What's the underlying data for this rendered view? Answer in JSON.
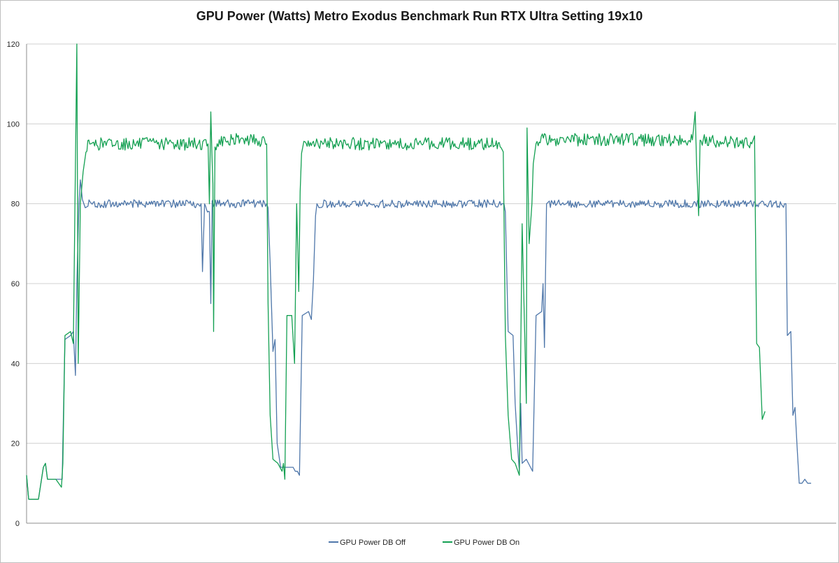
{
  "chart_data": {
    "type": "line",
    "title": "GPU Power (Watts) Metro Exodus Benchmark Run RTX Ultra Setting 19x10",
    "xlabel": "",
    "ylabel": "",
    "ylim": [
      0,
      120
    ],
    "yticks": [
      "0",
      "20",
      "40",
      "60",
      "80",
      "100",
      "120"
    ],
    "grid": true,
    "legend_position": "bottom-center",
    "series": [
      {
        "name": "GPU Power DB Off",
        "color": "#4f77aa",
        "points": [
          [
            0,
            12
          ],
          [
            3,
            6
          ],
          [
            7,
            6
          ],
          [
            10,
            6
          ],
          [
            17,
            6
          ],
          [
            24,
            14
          ],
          [
            27,
            15
          ],
          [
            30,
            11
          ],
          [
            42,
            11
          ],
          [
            51,
            11
          ],
          [
            55,
            46
          ],
          [
            63,
            47
          ],
          [
            67,
            48
          ],
          [
            70,
            37
          ],
          [
            72,
            60
          ],
          [
            75,
            80
          ],
          [
            77,
            86
          ],
          [
            80,
            81
          ],
          [
            84,
            79
          ],
          [
            88,
            80
          ],
          [
            200,
            80
          ],
          [
            245,
            80
          ],
          [
            250,
            80
          ],
          [
            252,
            63
          ],
          [
            255,
            80
          ],
          [
            262,
            78
          ],
          [
            264,
            55
          ],
          [
            266,
            80
          ],
          [
            330,
            80
          ],
          [
            344,
            80
          ],
          [
            346,
            79
          ],
          [
            349,
            65
          ],
          [
            353,
            43
          ],
          [
            356,
            46
          ],
          [
            359,
            20
          ],
          [
            364,
            14
          ],
          [
            372,
            14
          ],
          [
            382,
            14
          ],
          [
            385,
            13
          ],
          [
            388,
            13
          ],
          [
            391,
            12
          ],
          [
            395,
            52
          ],
          [
            404,
            53
          ],
          [
            408,
            51
          ],
          [
            411,
            61
          ],
          [
            414,
            77
          ],
          [
            416,
            80
          ],
          [
            419,
            79
          ],
          [
            423,
            80
          ],
          [
            440,
            80
          ],
          [
            540,
            80
          ],
          [
            650,
            80
          ],
          [
            681,
            80
          ],
          [
            684,
            80
          ],
          [
            686,
            78
          ],
          [
            690,
            48
          ],
          [
            697,
            47
          ],
          [
            700,
            30
          ],
          [
            704,
            18
          ],
          [
            706,
            13
          ],
          [
            708,
            30
          ],
          [
            710,
            15
          ],
          [
            716,
            16
          ],
          [
            722,
            14
          ],
          [
            725,
            13
          ],
          [
            730,
            52
          ],
          [
            738,
            53
          ],
          [
            740,
            60
          ],
          [
            742,
            44
          ],
          [
            745,
            80
          ],
          [
            749,
            80
          ],
          [
            755,
            80
          ],
          [
            870,
            80
          ],
          [
            1030,
            80
          ],
          [
            1086,
            80
          ],
          [
            1088,
            80
          ],
          [
            1090,
            47
          ],
          [
            1095,
            48
          ],
          [
            1098,
            27
          ],
          [
            1101,
            29
          ],
          [
            1104,
            19
          ],
          [
            1107,
            10
          ],
          [
            1111,
            10
          ],
          [
            1115,
            11
          ],
          [
            1119,
            10
          ],
          [
            1124,
            10
          ]
        ]
      },
      {
        "name": "GPU Power DB On",
        "color": "#14a052",
        "points": [
          [
            0,
            12
          ],
          [
            3,
            6
          ],
          [
            7,
            6
          ],
          [
            10,
            6
          ],
          [
            17,
            6
          ],
          [
            24,
            14
          ],
          [
            27,
            15
          ],
          [
            30,
            11
          ],
          [
            42,
            11
          ],
          [
            50,
            9
          ],
          [
            52,
            15
          ],
          [
            55,
            47
          ],
          [
            63,
            48
          ],
          [
            67,
            45
          ],
          [
            70,
            90
          ],
          [
            72,
            120
          ],
          [
            74,
            40
          ],
          [
            77,
            80
          ],
          [
            81,
            88
          ],
          [
            85,
            94
          ],
          [
            92,
            95
          ],
          [
            96,
            95
          ],
          [
            180,
            95
          ],
          [
            260,
            95
          ],
          [
            262,
            80
          ],
          [
            264,
            103
          ],
          [
            266,
            90
          ],
          [
            267,
            85
          ],
          [
            268,
            48
          ],
          [
            270,
            95
          ],
          [
            296,
            96
          ],
          [
            330,
            96
          ],
          [
            344,
            95
          ],
          [
            346,
            55
          ],
          [
            349,
            27
          ],
          [
            353,
            16
          ],
          [
            360,
            15
          ],
          [
            366,
            13
          ],
          [
            368,
            15
          ],
          [
            370,
            11
          ],
          [
            373,
            52
          ],
          [
            380,
            52
          ],
          [
            384,
            40
          ],
          [
            387,
            80
          ],
          [
            390,
            58
          ],
          [
            392,
            83
          ],
          [
            394,
            94
          ],
          [
            399,
            95
          ],
          [
            420,
            95
          ],
          [
            600,
            95
          ],
          [
            673,
            95
          ],
          [
            680,
            94
          ],
          [
            683,
            93
          ],
          [
            686,
            47
          ],
          [
            690,
            27
          ],
          [
            695,
            16
          ],
          [
            700,
            15
          ],
          [
            706,
            12
          ],
          [
            710,
            75
          ],
          [
            716,
            30
          ],
          [
            717,
            99
          ],
          [
            720,
            70
          ],
          [
            724,
            80
          ],
          [
            726,
            90
          ],
          [
            730,
            96
          ],
          [
            760,
            96
          ],
          [
            900,
            96
          ],
          [
            954,
            96
          ],
          [
            958,
            103
          ],
          [
            960,
            90
          ],
          [
            963,
            77
          ],
          [
            965,
            96
          ],
          [
            1030,
            95
          ],
          [
            1039,
            95
          ],
          [
            1043,
            97
          ],
          [
            1046,
            45
          ],
          [
            1050,
            44
          ],
          [
            1054,
            26
          ],
          [
            1058,
            28
          ]
        ]
      }
    ]
  }
}
